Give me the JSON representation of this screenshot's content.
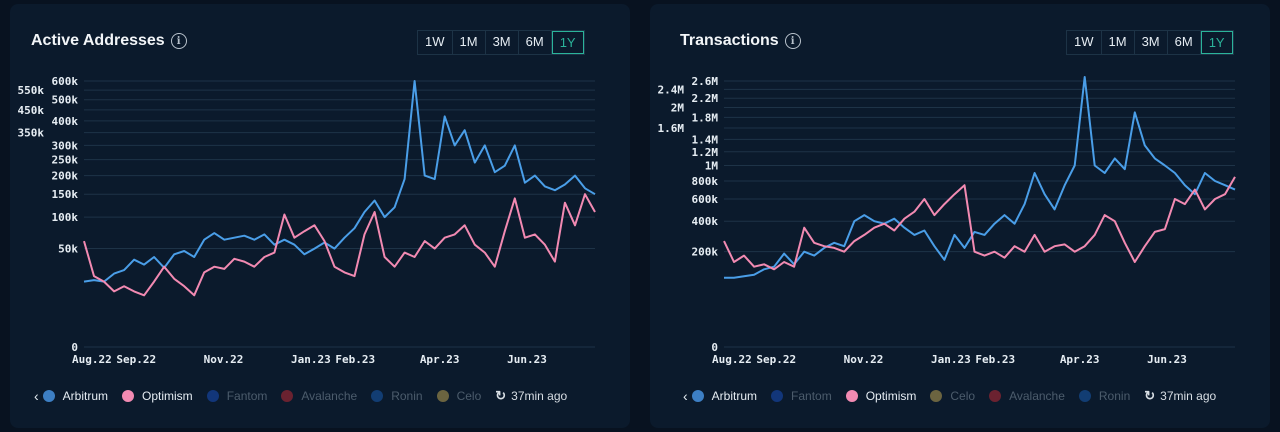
{
  "panels": [
    {
      "title": "Active Addresses",
      "ranges": [
        "1W",
        "1M",
        "3M",
        "6M",
        "1Y"
      ],
      "active_range": "1Y",
      "legend": [
        {
          "label": "Arbitrum",
          "color": "#3d7fc4",
          "active": true
        },
        {
          "label": "Optimism",
          "color": "#f28ab2",
          "active": true
        },
        {
          "label": "Fantom",
          "color": "#12367a",
          "active": false
        },
        {
          "label": "Avalanche",
          "color": "#6b2230",
          "active": false
        },
        {
          "label": "Ronin",
          "color": "#123d73",
          "active": false
        },
        {
          "label": "Celo",
          "color": "#6b6440",
          "active": false
        }
      ],
      "updated": "37min ago"
    },
    {
      "title": "Transactions",
      "ranges": [
        "1W",
        "1M",
        "3M",
        "6M",
        "1Y"
      ],
      "active_range": "1Y",
      "legend": [
        {
          "label": "Arbitrum",
          "color": "#3d7fc4",
          "active": true
        },
        {
          "label": "Fantom",
          "color": "#12367a",
          "active": false
        },
        {
          "label": "Optimism",
          "color": "#f28ab2",
          "active": true
        },
        {
          "label": "Celo",
          "color": "#6b6440",
          "active": false
        },
        {
          "label": "Avalanche",
          "color": "#6b2230",
          "active": false
        },
        {
          "label": "Ronin",
          "color": "#123d73",
          "active": false
        }
      ],
      "updated": "37min ago"
    }
  ],
  "chart_data": [
    {
      "type": "line",
      "title": "Active Addresses",
      "y_scale": "power (compressed, approx. exponent 0.4)",
      "grid": true,
      "ylim": [
        0,
        600000
      ],
      "yticks": [
        {
          "v": 0,
          "label": "0"
        },
        {
          "v": 50000,
          "label": "50k"
        },
        {
          "v": 100000,
          "label": "100k"
        },
        {
          "v": 150000,
          "label": "150k"
        },
        {
          "v": 200000,
          "label": "200k"
        },
        {
          "v": 250000,
          "label": "250k"
        },
        {
          "v": 300000,
          "label": "300k"
        },
        {
          "v": 350000,
          "label": "350k"
        },
        {
          "v": 400000,
          "label": "400k"
        },
        {
          "v": 450000,
          "label": "450k"
        },
        {
          "v": 500000,
          "label": "500k"
        },
        {
          "v": 550000,
          "label": "550k"
        },
        {
          "v": 600000,
          "label": "600k"
        }
      ],
      "xticks": [
        {
          "date": "2022-08-01",
          "label": "Aug.22"
        },
        {
          "date": "2022-09-01",
          "label": "Sep.22"
        },
        {
          "date": "2022-11-01",
          "label": "Nov.22"
        },
        {
          "date": "2023-01-01",
          "label": "Jan.23"
        },
        {
          "date": "2023-02-01",
          "label": "Feb.23"
        },
        {
          "date": "2023-04-01",
          "label": "Apr.23"
        },
        {
          "date": "2023-06-01",
          "label": "Jun.23"
        }
      ],
      "xlim": [
        "2022-08-01",
        "2023-07-24"
      ],
      "x": [
        "2022-08-01",
        "2022-08-08",
        "2022-08-15",
        "2022-08-22",
        "2022-08-29",
        "2022-09-05",
        "2022-09-12",
        "2022-09-19",
        "2022-09-26",
        "2022-10-03",
        "2022-10-10",
        "2022-10-17",
        "2022-10-24",
        "2022-10-31",
        "2022-11-07",
        "2022-11-14",
        "2022-11-21",
        "2022-11-28",
        "2022-12-05",
        "2022-12-12",
        "2022-12-19",
        "2022-12-26",
        "2023-01-02",
        "2023-01-09",
        "2023-01-16",
        "2023-01-23",
        "2023-01-30",
        "2023-02-06",
        "2023-02-13",
        "2023-02-20",
        "2023-02-27",
        "2023-03-06",
        "2023-03-13",
        "2023-03-20",
        "2023-03-27",
        "2023-04-03",
        "2023-04-10",
        "2023-04-17",
        "2023-04-24",
        "2023-05-01",
        "2023-05-08",
        "2023-05-15",
        "2023-05-22",
        "2023-05-29",
        "2023-06-05",
        "2023-06-12",
        "2023-06-19",
        "2023-06-26",
        "2023-07-03",
        "2023-07-10",
        "2023-07-17",
        "2023-07-24"
      ],
      "series": [
        {
          "name": "Arbitrum",
          "color": "#4a9ee8",
          "values": [
            18000,
            19000,
            18000,
            24000,
            27000,
            37000,
            32000,
            40000,
            29000,
            43000,
            47000,
            40000,
            62000,
            72000,
            62000,
            65000,
            68000,
            62000,
            70000,
            55000,
            62000,
            55000,
            43000,
            50000,
            58000,
            50000,
            65000,
            80000,
            110000,
            135000,
            100000,
            120000,
            190000,
            600000,
            200000,
            190000,
            420000,
            300000,
            360000,
            240000,
            300000,
            210000,
            230000,
            300000,
            180000,
            200000,
            170000,
            160000,
            175000,
            200000,
            165000,
            150000
          ]
        },
        {
          "name": "Optimism",
          "color": "#f28ab2",
          "values": [
            60000,
            22000,
            18000,
            12000,
            15000,
            12000,
            10000,
            18000,
            30000,
            20000,
            15000,
            10000,
            25000,
            30000,
            28000,
            38000,
            35000,
            30000,
            40000,
            45000,
            105000,
            65000,
            75000,
            85000,
            60000,
            30000,
            25000,
            22000,
            70000,
            110000,
            40000,
            30000,
            45000,
            40000,
            60000,
            50000,
            65000,
            70000,
            85000,
            55000,
            45000,
            30000,
            75000,
            140000,
            65000,
            70000,
            55000,
            35000,
            130000,
            85000,
            150000,
            110000
          ]
        }
      ]
    },
    {
      "type": "line",
      "title": "Transactions",
      "y_scale": "power (compressed, approx. exponent 0.4)",
      "grid": true,
      "ylim": [
        0,
        2600000
      ],
      "yticks": [
        {
          "v": 0,
          "label": "0"
        },
        {
          "v": 200000,
          "label": "200k"
        },
        {
          "v": 400000,
          "label": "400k"
        },
        {
          "v": 600000,
          "label": "600k"
        },
        {
          "v": 800000,
          "label": "800k"
        },
        {
          "v": 1000000,
          "label": "1M"
        },
        {
          "v": 1200000,
          "label": "1.2M"
        },
        {
          "v": 1400000,
          "label": "1.4M"
        },
        {
          "v": 1600000,
          "label": "1.6M"
        },
        {
          "v": 1800000,
          "label": "1.8M"
        },
        {
          "v": 2000000,
          "label": "2M"
        },
        {
          "v": 2200000,
          "label": "2.2M"
        },
        {
          "v": 2400000,
          "label": "2.4M"
        },
        {
          "v": 2600000,
          "label": "2.6M"
        }
      ],
      "xticks": [
        {
          "date": "2022-08-01",
          "label": "Aug.22"
        },
        {
          "date": "2022-09-01",
          "label": "Sep.22"
        },
        {
          "date": "2022-11-01",
          "label": "Nov.22"
        },
        {
          "date": "2023-01-01",
          "label": "Jan.23"
        },
        {
          "date": "2023-02-01",
          "label": "Feb.23"
        },
        {
          "date": "2023-04-01",
          "label": "Apr.23"
        },
        {
          "date": "2023-06-01",
          "label": "Jun.23"
        }
      ],
      "xlim": [
        "2022-08-01",
        "2023-07-24"
      ],
      "x": [
        "2022-08-01",
        "2022-08-08",
        "2022-08-15",
        "2022-08-22",
        "2022-08-29",
        "2022-09-05",
        "2022-09-12",
        "2022-09-19",
        "2022-09-26",
        "2022-10-03",
        "2022-10-10",
        "2022-10-17",
        "2022-10-24",
        "2022-10-31",
        "2022-11-07",
        "2022-11-14",
        "2022-11-21",
        "2022-11-28",
        "2022-12-05",
        "2022-12-12",
        "2022-12-19",
        "2022-12-26",
        "2023-01-02",
        "2023-01-09",
        "2023-01-16",
        "2023-01-23",
        "2023-01-30",
        "2023-02-06",
        "2023-02-13",
        "2023-02-20",
        "2023-02-27",
        "2023-03-06",
        "2023-03-13",
        "2023-03-20",
        "2023-03-27",
        "2023-04-03",
        "2023-04-10",
        "2023-04-17",
        "2023-04-24",
        "2023-05-01",
        "2023-05-08",
        "2023-05-15",
        "2023-05-22",
        "2023-05-29",
        "2023-06-05",
        "2023-06-12",
        "2023-06-19",
        "2023-06-26",
        "2023-07-03",
        "2023-07-10",
        "2023-07-17",
        "2023-07-24"
      ],
      "series": [
        {
          "name": "Arbitrum",
          "color": "#4a9ee8",
          "values": [
            90000,
            90000,
            95000,
            100000,
            120000,
            130000,
            190000,
            140000,
            200000,
            180000,
            220000,
            250000,
            230000,
            400000,
            450000,
            400000,
            380000,
            420000,
            350000,
            300000,
            330000,
            230000,
            160000,
            300000,
            220000,
            320000,
            300000,
            380000,
            450000,
            380000,
            550000,
            900000,
            650000,
            500000,
            750000,
            1000000,
            2700000,
            1000000,
            900000,
            1100000,
            950000,
            1900000,
            1300000,
            1100000,
            1000000,
            900000,
            750000,
            650000,
            900000,
            800000,
            750000,
            700000
          ]
        },
        {
          "name": "Optimism",
          "color": "#f28ab2",
          "values": [
            260000,
            150000,
            180000,
            130000,
            140000,
            120000,
            150000,
            130000,
            350000,
            250000,
            230000,
            220000,
            200000,
            260000,
            300000,
            350000,
            380000,
            330000,
            420000,
            480000,
            600000,
            450000,
            550000,
            650000,
            750000,
            200000,
            180000,
            200000,
            170000,
            230000,
            200000,
            300000,
            200000,
            230000,
            240000,
            200000,
            230000,
            300000,
            450000,
            400000,
            250000,
            150000,
            230000,
            320000,
            340000,
            600000,
            550000,
            700000,
            500000,
            600000,
            650000,
            850000
          ]
        }
      ]
    }
  ]
}
